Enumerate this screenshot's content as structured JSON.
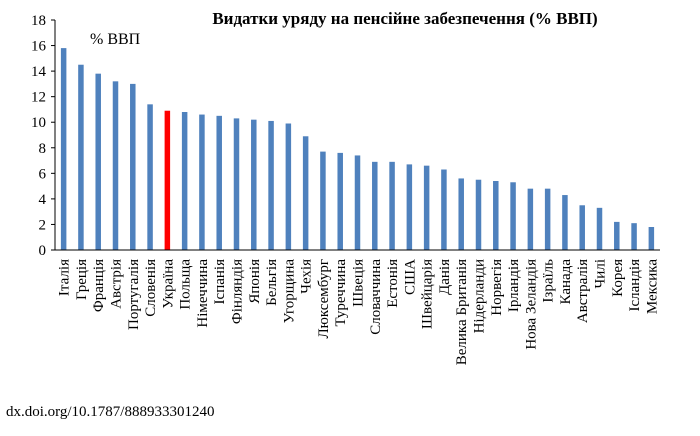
{
  "chart_data": {
    "type": "bar",
    "title": "Видатки уряду на пенсійне забезпечення (% ВВП)",
    "ylabel": "% ВВП",
    "xlabel": "",
    "ylim": [
      0,
      18
    ],
    "yticks": [
      0,
      2,
      4,
      6,
      8,
      10,
      12,
      14,
      16,
      18
    ],
    "grid": false,
    "legend": "none",
    "bar_color": "#4F81BD",
    "highlight_color": "#FF0000",
    "highlight_category": "Україна",
    "categories": [
      "Італія",
      "Греція",
      "Франція",
      "Австрія",
      "Португалія",
      "Словенія",
      "Україна",
      "Польща",
      "Німеччина",
      "Іспанія",
      "Фінляндія",
      "Японія",
      "Бельгія",
      "Угорщина",
      "Чехія",
      "Люксембург",
      "Туреччина",
      "Швеція",
      "Словаччина",
      "Естонія",
      "США",
      "Швейцарія",
      "Данія",
      "Велика Британія",
      "Нідерланди",
      "Норвегія",
      "Ірландія",
      "Нова Зеландія",
      "Ізраїль",
      "Канада",
      "Австралія",
      "Чилі",
      "Корея",
      "Ісландія",
      "Мексика"
    ],
    "values": [
      15.8,
      14.5,
      13.8,
      13.2,
      13.0,
      11.4,
      10.9,
      10.8,
      10.6,
      10.5,
      10.3,
      10.2,
      10.1,
      9.9,
      8.9,
      7.7,
      7.6,
      7.4,
      6.9,
      6.9,
      6.7,
      6.6,
      6.3,
      5.6,
      5.5,
      5.4,
      5.3,
      4.8,
      4.8,
      4.3,
      3.5,
      3.3,
      2.2,
      2.1,
      1.8
    ]
  },
  "footer": {
    "doi": "dx.doi.org/10.1787/888933301240"
  }
}
